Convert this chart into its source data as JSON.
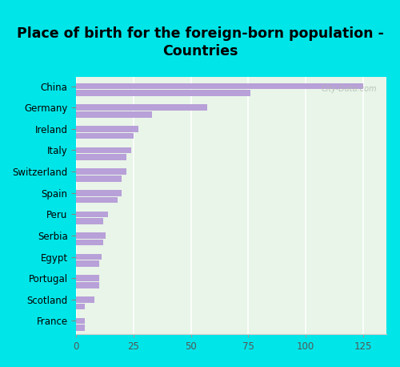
{
  "title": "Place of birth for the foreign-born population -\nCountries",
  "categories": [
    "China",
    "Germany",
    "Ireland",
    "Italy",
    "Switzerland",
    "Spain",
    "Peru",
    "Serbia",
    "Egypt",
    "Portugal",
    "Scotland",
    "France"
  ],
  "values1": [
    125,
    57,
    27,
    24,
    22,
    20,
    14,
    13,
    11,
    10,
    8,
    4
  ],
  "values2": [
    76,
    33,
    25,
    22,
    20,
    18,
    12,
    12,
    10,
    10,
    4,
    4
  ],
  "bar_color": "#b8a0d8",
  "bg_color_left": "#d4edda",
  "bg_color_right": "#f0f8ef",
  "outer_bg": "#00e5e8",
  "title_fontsize": 12.5,
  "xticks": [
    0,
    25,
    50,
    75,
    100,
    125
  ],
  "watermark": "City-Data.com"
}
